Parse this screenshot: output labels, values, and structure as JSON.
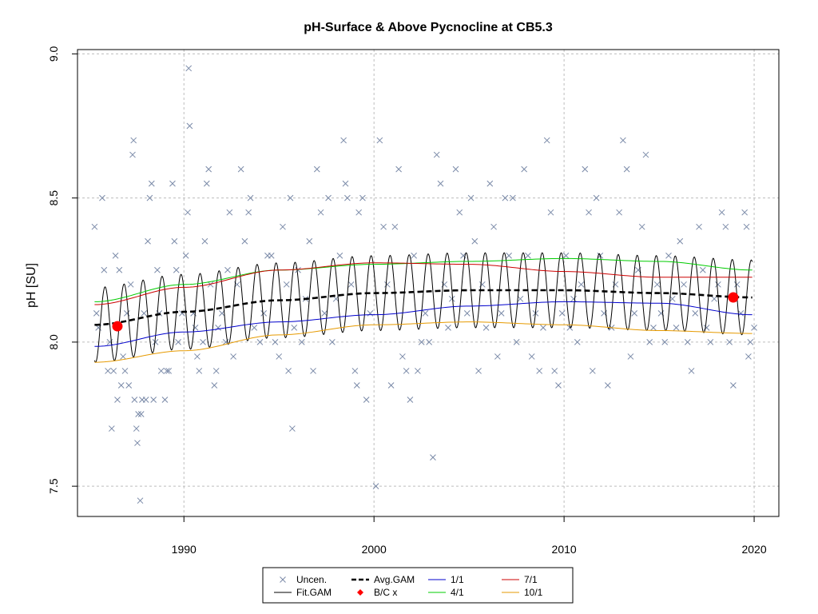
{
  "chart_data": {
    "type": "scatter",
    "title": "pH-Surface & Above Pycnocline at CB5.3",
    "xlabel": "",
    "ylabel": "pH [SU]",
    "xlim": [
      1984.4,
      2021.3
    ],
    "ylim": [
      7.395,
      9.015
    ],
    "x_ticks": [
      "1990",
      "2000",
      "2010",
      "2020"
    ],
    "y_ticks": [
      "7.5",
      "8.0",
      "8.5",
      "9.0"
    ],
    "grid": true,
    "legend_position": "bottom-center",
    "legend": [
      {
        "label": "Uncen.",
        "style": "x-marker",
        "color": "#7a8aa8"
      },
      {
        "label": "Avg.GAM",
        "style": "dashed-thick",
        "color": "#000000"
      },
      {
        "label": "1/1",
        "style": "line",
        "color": "#0000cc"
      },
      {
        "label": "7/1",
        "style": "line",
        "color": "#cc0000"
      },
      {
        "label": "Fit.GAM",
        "style": "line",
        "color": "#000000"
      },
      {
        "label": "B/C x",
        "style": "red-dot",
        "color": "#ff0000"
      },
      {
        "label": "4/1",
        "style": "line",
        "color": "#00cc00"
      },
      {
        "label": "10/1",
        "style": "line",
        "color": "#e69a00"
      }
    ],
    "series": [
      {
        "name": "Uncen.",
        "kind": "points",
        "points": [
          [
            1985.3,
            8.4
          ],
          [
            1985.4,
            8.1
          ],
          [
            1985.5,
            8.05
          ],
          [
            1985.7,
            8.5
          ],
          [
            1985.8,
            8.25
          ],
          [
            1986.0,
            7.9
          ],
          [
            1986.1,
            8.0
          ],
          [
            1986.2,
            7.7
          ],
          [
            1986.3,
            7.9
          ],
          [
            1986.4,
            8.3
          ],
          [
            1986.5,
            7.8
          ],
          [
            1986.6,
            8.25
          ],
          [
            1986.7,
            7.85
          ],
          [
            1986.8,
            7.95
          ],
          [
            1986.9,
            7.9
          ],
          [
            1987.0,
            8.1
          ],
          [
            1987.1,
            7.85
          ],
          [
            1987.2,
            8.2
          ],
          [
            1987.3,
            8.65
          ],
          [
            1987.35,
            8.7
          ],
          [
            1987.4,
            7.8
          ],
          [
            1987.5,
            7.7
          ],
          [
            1987.55,
            7.65
          ],
          [
            1987.6,
            7.75
          ],
          [
            1987.7,
            7.45
          ],
          [
            1987.75,
            7.75
          ],
          [
            1987.8,
            7.8
          ],
          [
            1987.9,
            8.1
          ],
          [
            1988.0,
            7.8
          ],
          [
            1988.1,
            8.35
          ],
          [
            1988.2,
            8.5
          ],
          [
            1988.3,
            8.55
          ],
          [
            1988.4,
            7.8
          ],
          [
            1988.5,
            8.0
          ],
          [
            1988.6,
            8.25
          ],
          [
            1988.7,
            8.1
          ],
          [
            1988.8,
            7.9
          ],
          [
            1989.0,
            7.8
          ],
          [
            1989.1,
            7.9
          ],
          [
            1989.2,
            7.9
          ],
          [
            1989.4,
            8.55
          ],
          [
            1989.5,
            8.35
          ],
          [
            1989.6,
            8.25
          ],
          [
            1989.7,
            8.0
          ],
          [
            1989.9,
            8.1
          ],
          [
            1990.1,
            8.3
          ],
          [
            1990.2,
            8.45
          ],
          [
            1990.25,
            8.95
          ],
          [
            1990.3,
            8.75
          ],
          [
            1990.5,
            8.1
          ],
          [
            1990.6,
            8.05
          ],
          [
            1990.7,
            7.95
          ],
          [
            1990.8,
            7.9
          ],
          [
            1991.0,
            8.0
          ],
          [
            1991.1,
            8.35
          ],
          [
            1991.2,
            8.55
          ],
          [
            1991.3,
            8.6
          ],
          [
            1991.4,
            8.2
          ],
          [
            1991.6,
            7.85
          ],
          [
            1991.7,
            7.9
          ],
          [
            1991.8,
            8.05
          ],
          [
            1992.0,
            8.1
          ],
          [
            1992.2,
            8.0
          ],
          [
            1992.3,
            8.25
          ],
          [
            1992.4,
            8.45
          ],
          [
            1992.6,
            7.95
          ],
          [
            1992.8,
            8.2
          ],
          [
            1993.0,
            8.6
          ],
          [
            1993.2,
            8.35
          ],
          [
            1993.4,
            8.45
          ],
          [
            1993.5,
            8.5
          ],
          [
            1993.7,
            8.05
          ],
          [
            1994.0,
            8.0
          ],
          [
            1994.2,
            8.1
          ],
          [
            1994.4,
            8.3
          ],
          [
            1994.6,
            8.3
          ],
          [
            1994.8,
            8.0
          ],
          [
            1995.0,
            7.95
          ],
          [
            1995.2,
            8.4
          ],
          [
            1995.4,
            8.2
          ],
          [
            1995.5,
            7.9
          ],
          [
            1995.6,
            8.5
          ],
          [
            1995.7,
            7.7
          ],
          [
            1995.8,
            8.05
          ],
          [
            1996.0,
            8.25
          ],
          [
            1996.2,
            8.0
          ],
          [
            1996.4,
            8.15
          ],
          [
            1996.6,
            8.35
          ],
          [
            1996.8,
            7.9
          ],
          [
            1997.0,
            8.6
          ],
          [
            1997.2,
            8.45
          ],
          [
            1997.4,
            8.1
          ],
          [
            1997.6,
            8.5
          ],
          [
            1997.8,
            8.0
          ],
          [
            1998.0,
            8.15
          ],
          [
            1998.2,
            8.3
          ],
          [
            1998.4,
            8.7
          ],
          [
            1998.5,
            8.55
          ],
          [
            1998.6,
            8.5
          ],
          [
            1998.8,
            8.2
          ],
          [
            1999.0,
            7.9
          ],
          [
            1999.1,
            7.85
          ],
          [
            1999.2,
            8.45
          ],
          [
            1999.4,
            8.5
          ],
          [
            1999.6,
            7.8
          ],
          [
            1999.8,
            8.1
          ],
          [
            2000.1,
            7.5
          ],
          [
            2000.3,
            8.7
          ],
          [
            2000.5,
            8.4
          ],
          [
            2000.7,
            8.2
          ],
          [
            2000.9,
            7.85
          ],
          [
            2001.1,
            8.4
          ],
          [
            2001.3,
            8.6
          ],
          [
            2001.5,
            7.95
          ],
          [
            2001.7,
            7.9
          ],
          [
            2001.9,
            7.8
          ],
          [
            2002.1,
            8.3
          ],
          [
            2002.3,
            7.9
          ],
          [
            2002.5,
            8.0
          ],
          [
            2002.7,
            8.1
          ],
          [
            2002.9,
            8.0
          ],
          [
            2003.1,
            7.6
          ],
          [
            2003.3,
            8.65
          ],
          [
            2003.5,
            8.55
          ],
          [
            2003.7,
            8.2
          ],
          [
            2003.9,
            8.05
          ],
          [
            2004.1,
            8.15
          ],
          [
            2004.3,
            8.6
          ],
          [
            2004.5,
            8.45
          ],
          [
            2004.7,
            8.3
          ],
          [
            2004.9,
            8.1
          ],
          [
            2005.1,
            8.5
          ],
          [
            2005.3,
            8.35
          ],
          [
            2005.5,
            7.9
          ],
          [
            2005.7,
            8.2
          ],
          [
            2005.9,
            8.05
          ],
          [
            2006.1,
            8.55
          ],
          [
            2006.3,
            8.4
          ],
          [
            2006.5,
            7.95
          ],
          [
            2006.7,
            8.1
          ],
          [
            2006.9,
            8.5
          ],
          [
            2007.1,
            8.3
          ],
          [
            2007.3,
            8.5
          ],
          [
            2007.5,
            8.0
          ],
          [
            2007.7,
            8.15
          ],
          [
            2007.9,
            8.6
          ],
          [
            2008.1,
            8.3
          ],
          [
            2008.3,
            7.95
          ],
          [
            2008.5,
            8.1
          ],
          [
            2008.7,
            7.9
          ],
          [
            2008.9,
            8.05
          ],
          [
            2009.1,
            8.7
          ],
          [
            2009.3,
            8.45
          ],
          [
            2009.5,
            7.9
          ],
          [
            2009.7,
            7.85
          ],
          [
            2009.9,
            8.1
          ],
          [
            2010.1,
            8.3
          ],
          [
            2010.3,
            8.05
          ],
          [
            2010.5,
            8.15
          ],
          [
            2010.7,
            8.0
          ],
          [
            2010.9,
            8.2
          ],
          [
            2011.1,
            8.6
          ],
          [
            2011.3,
            8.45
          ],
          [
            2011.5,
            7.9
          ],
          [
            2011.7,
            8.5
          ],
          [
            2011.9,
            8.3
          ],
          [
            2012.1,
            8.1
          ],
          [
            2012.3,
            7.85
          ],
          [
            2012.5,
            8.05
          ],
          [
            2012.7,
            8.2
          ],
          [
            2012.9,
            8.45
          ],
          [
            2013.1,
            8.7
          ],
          [
            2013.3,
            8.6
          ],
          [
            2013.5,
            7.95
          ],
          [
            2013.7,
            8.1
          ],
          [
            2013.9,
            8.25
          ],
          [
            2014.1,
            8.4
          ],
          [
            2014.3,
            8.65
          ],
          [
            2014.5,
            8.0
          ],
          [
            2014.7,
            8.05
          ],
          [
            2014.9,
            8.2
          ],
          [
            2015.1,
            8.1
          ],
          [
            2015.3,
            8.0
          ],
          [
            2015.5,
            8.3
          ],
          [
            2015.7,
            8.15
          ],
          [
            2015.9,
            8.05
          ],
          [
            2016.1,
            8.35
          ],
          [
            2016.3,
            8.2
          ],
          [
            2016.5,
            8.0
          ],
          [
            2016.7,
            7.9
          ],
          [
            2016.9,
            8.1
          ],
          [
            2017.1,
            8.4
          ],
          [
            2017.3,
            8.25
          ],
          [
            2017.5,
            8.05
          ],
          [
            2017.7,
            8.0
          ],
          [
            2017.9,
            8.15
          ],
          [
            2018.1,
            8.2
          ],
          [
            2018.3,
            8.45
          ],
          [
            2018.5,
            8.4
          ],
          [
            2018.7,
            8.0
          ],
          [
            2018.9,
            7.85
          ],
          [
            2019.1,
            8.2
          ],
          [
            2019.3,
            8.1
          ],
          [
            2019.5,
            8.45
          ],
          [
            2019.6,
            8.4
          ],
          [
            2019.7,
            7.95
          ],
          [
            2019.8,
            8.0
          ],
          [
            2020.0,
            8.05
          ]
        ]
      },
      {
        "name": "Fit.GAM",
        "kind": "seasonal",
        "x_start": 1985.3,
        "x_end": 2019.9,
        "amplitude": 0.13,
        "phase": 0.4,
        "base_from": "Avg.GAM"
      },
      {
        "name": "Avg.GAM",
        "kind": "line",
        "x": [
          1985.3,
          1990,
          1995,
          2000,
          2005,
          2010,
          2015,
          2019.9
        ],
        "y": [
          8.06,
          8.105,
          8.145,
          8.17,
          8.18,
          8.18,
          8.17,
          8.155
        ]
      },
      {
        "name": "1/1",
        "kind": "line",
        "x": [
          1985.3,
          1990,
          1995,
          2000,
          2005,
          2010,
          2015,
          2019.9
        ],
        "y": [
          7.985,
          8.035,
          8.07,
          8.095,
          8.125,
          8.14,
          8.135,
          8.095
        ]
      },
      {
        "name": "4/1",
        "kind": "line",
        "x": [
          1985.3,
          1990,
          1995,
          2000,
          2005,
          2010,
          2015,
          2019.9
        ],
        "y": [
          8.14,
          8.2,
          8.25,
          8.27,
          8.28,
          8.29,
          8.28,
          8.25
        ]
      },
      {
        "name": "7/1",
        "kind": "line",
        "x": [
          1985.3,
          1990,
          1995,
          2000,
          2005,
          2010,
          2015,
          2019.9
        ],
        "y": [
          8.13,
          8.19,
          8.25,
          8.275,
          8.27,
          8.245,
          8.225,
          8.225
        ]
      },
      {
        "name": "10/1",
        "kind": "line",
        "x": [
          1985.3,
          1990,
          1995,
          2000,
          2005,
          2010,
          2015,
          2019.9
        ],
        "y": [
          7.93,
          7.97,
          8.025,
          8.06,
          8.07,
          8.06,
          8.04,
          8.03
        ]
      },
      {
        "name": "B/C x",
        "kind": "points",
        "points": [
          [
            1986.5,
            8.055
          ],
          [
            2018.9,
            8.155
          ]
        ]
      }
    ]
  }
}
